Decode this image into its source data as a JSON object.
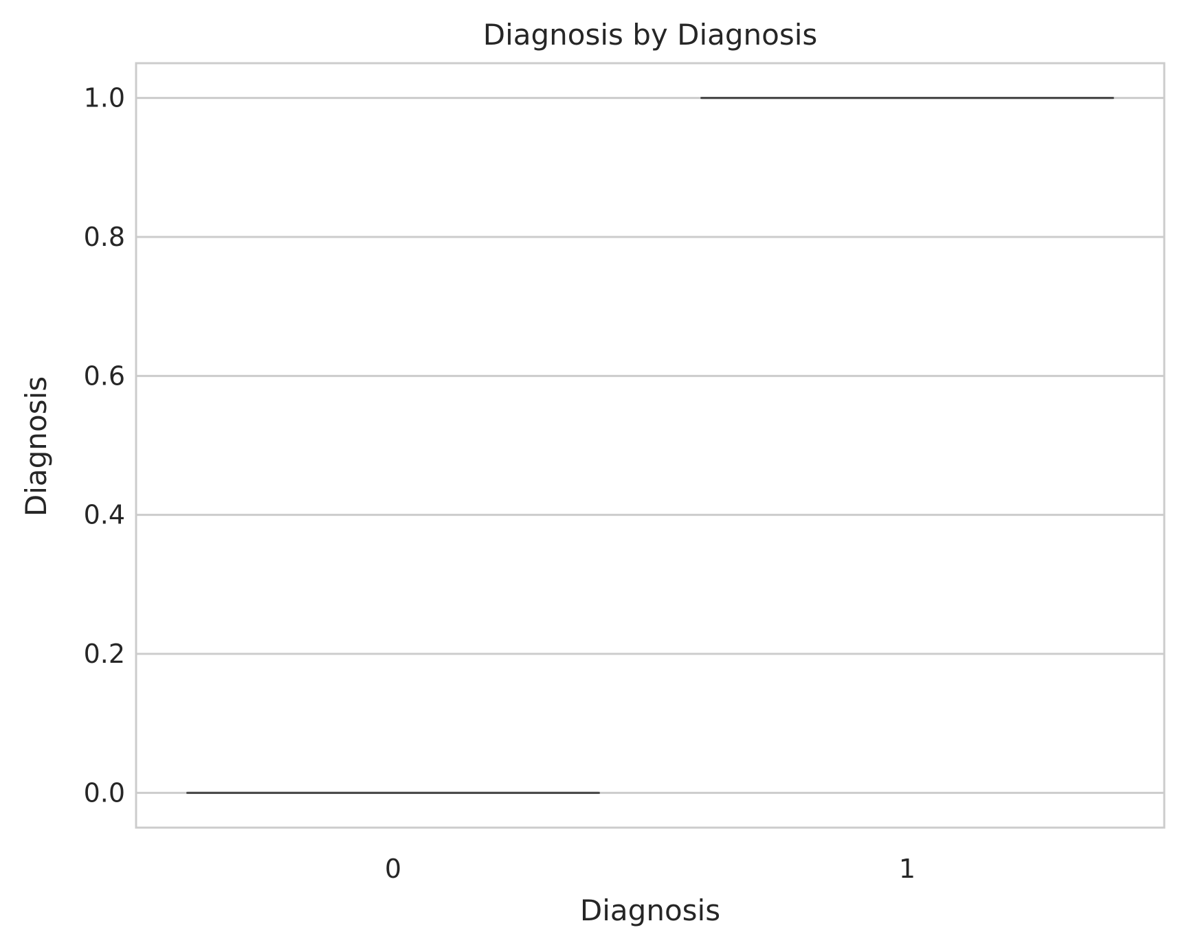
{
  "chart_data": {
    "type": "box",
    "title": "Diagnosis by Diagnosis",
    "xlabel": "Diagnosis",
    "ylabel": "Diagnosis",
    "categories": [
      "0",
      "1"
    ],
    "boxes": [
      {
        "category": "0",
        "min": 0,
        "q1": 0,
        "median": 0,
        "q3": 0,
        "max": 0
      },
      {
        "category": "1",
        "min": 1,
        "q1": 1,
        "median": 1,
        "q3": 1,
        "max": 1
      }
    ],
    "yticks": [
      0.0,
      0.2,
      0.4,
      0.6,
      0.8,
      1.0
    ],
    "ytick_labels": [
      "0.0",
      "0.2",
      "0.4",
      "0.6",
      "0.8",
      "1.0"
    ],
    "ylim": [
      -0.05,
      1.05
    ],
    "grid": "horizontal",
    "colors": {
      "grid": "#cccccc",
      "frame": "#cccccc",
      "box_line": "#4a4a4a",
      "text": "#262626"
    }
  }
}
